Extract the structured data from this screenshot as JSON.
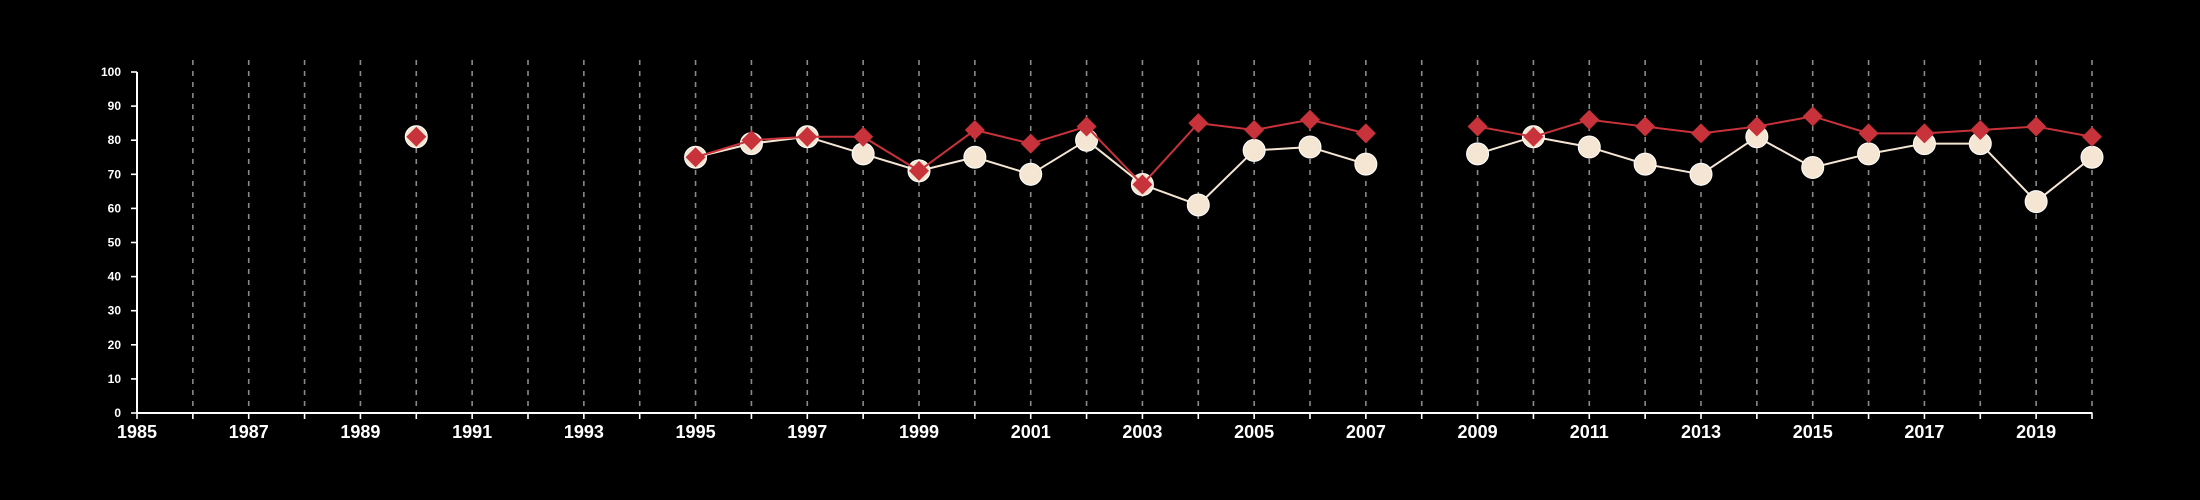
{
  "chart_data": {
    "type": "line",
    "title": "",
    "xlabel": "",
    "ylabel": "",
    "xlim": [
      1985,
      2020
    ],
    "ylim": [
      0,
      100
    ],
    "x_ticks": [
      1985,
      1987,
      1989,
      1991,
      1993,
      1995,
      1997,
      1999,
      2001,
      2003,
      2005,
      2007,
      2009,
      2011,
      2013,
      2015,
      2017,
      2019
    ],
    "y_ticks": [
      0,
      10,
      20,
      30,
      40,
      50,
      60,
      70,
      80,
      90,
      100
    ],
    "background_color": "#000000",
    "grid": "vertical dashed at each year",
    "legend": "none",
    "series": [
      {
        "color": "#f5e6d3",
        "marker": "circle",
        "points": [
          [
            1990,
            81
          ],
          [
            1995,
            75
          ],
          [
            1996,
            79
          ],
          [
            1997,
            81
          ],
          [
            1998,
            76
          ],
          [
            1999,
            71
          ],
          [
            2000,
            75
          ],
          [
            2001,
            70
          ],
          [
            2002,
            80
          ],
          [
            2003,
            67
          ],
          [
            2004,
            61
          ],
          [
            2005,
            77
          ],
          [
            2006,
            78
          ],
          [
            2007,
            73
          ],
          [
            2009,
            76
          ],
          [
            2010,
            81
          ],
          [
            2011,
            78
          ],
          [
            2012,
            73
          ],
          [
            2013,
            70
          ],
          [
            2014,
            81
          ],
          [
            2015,
            72
          ],
          [
            2016,
            76
          ],
          [
            2017,
            79
          ],
          [
            2018,
            79
          ],
          [
            2019,
            62
          ],
          [
            2020,
            75
          ]
        ]
      },
      {
        "color": "#c8323a",
        "marker": "diamond",
        "points": [
          [
            1990,
            81
          ],
          [
            1995,
            75
          ],
          [
            1996,
            80
          ],
          [
            1997,
            81
          ],
          [
            1998,
            81
          ],
          [
            1999,
            71
          ],
          [
            2000,
            83
          ],
          [
            2001,
            79
          ],
          [
            2002,
            84
          ],
          [
            2003,
            67
          ],
          [
            2004,
            85
          ],
          [
            2005,
            83
          ],
          [
            2006,
            86
          ],
          [
            2007,
            82
          ],
          [
            2009,
            84
          ],
          [
            2010,
            81
          ],
          [
            2011,
            86
          ],
          [
            2012,
            84
          ],
          [
            2013,
            82
          ],
          [
            2014,
            84
          ],
          [
            2015,
            87
          ],
          [
            2016,
            82
          ],
          [
            2017,
            82
          ],
          [
            2018,
            83
          ],
          [
            2019,
            84
          ],
          [
            2020,
            81
          ]
        ]
      }
    ]
  }
}
